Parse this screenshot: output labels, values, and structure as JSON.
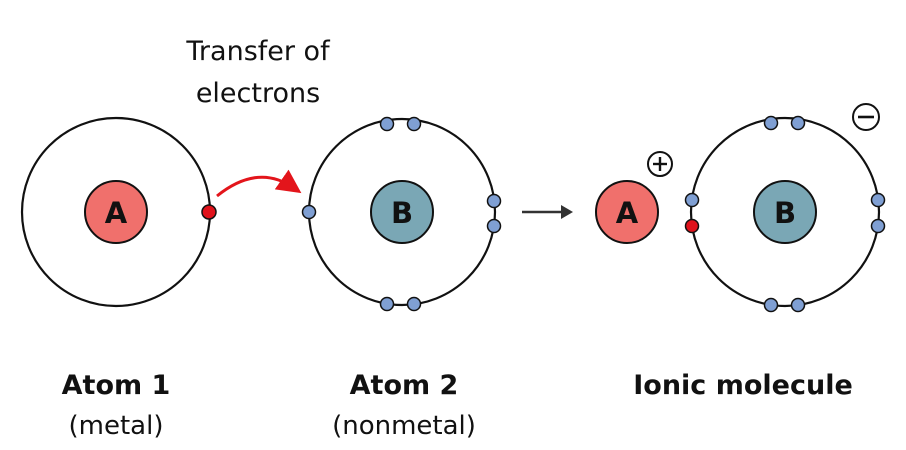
{
  "transfer_label": {
    "line1": "Transfer of",
    "line2": "electrons"
  },
  "atom1": {
    "nucleus": "A",
    "title": "Atom 1",
    "subtitle": "(metal)"
  },
  "atom2": {
    "nucleus": "B",
    "title": "Atom 2",
    "subtitle": "(nonmetal)"
  },
  "ionic_molecule": {
    "cation": "A",
    "anion": "B",
    "title": "Ionic molecule",
    "cation_charge": "+",
    "anion_charge": "−"
  },
  "colors": {
    "nucleus_a": "#f0706c",
    "nucleus_b": "#7aa7b5",
    "shell_electron": "#7f9fd3",
    "transferred_electron": "#e0121b",
    "transfer_arrow": "#e3151b",
    "reaction_arrow": "#333333"
  }
}
